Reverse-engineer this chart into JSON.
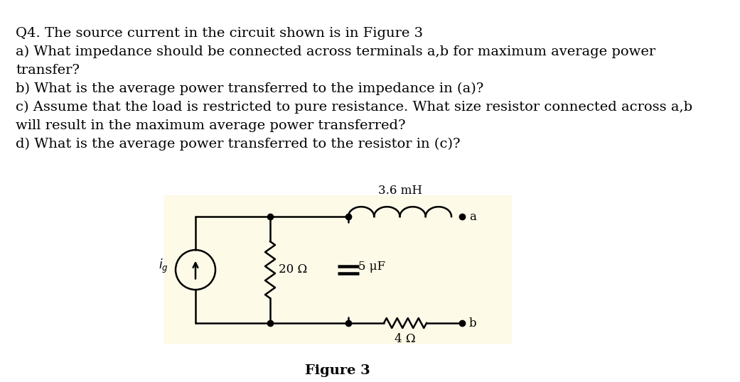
{
  "text_lines": [
    "Q4. The source current in the circuit shown is in Figure 3",
    "a) What impedance should be connected across terminals a,b for maximum average power",
    "transfer?",
    "b) What is the average power transferred to the impedance in (a)?",
    "c) Assume that the load is restricted to pure resistance. What size resistor connected across a,b",
    "will result in the maximum average power transferred?",
    "d) What is the average power transferred to the resistor in (c)?"
  ],
  "bg_color": "#ffffff",
  "circuit_bg": "#fefae8",
  "figure_label": "Figure 3",
  "inductor_label": "3.6 mH",
  "resistor20_label": "20 Ω",
  "capacitor_label": "5 μF",
  "resistor4_label": "4 Ω",
  "terminal_a": "a",
  "terminal_b": "b",
  "source_label": "i_g",
  "text_fontsize": 14,
  "circuit_fontsize": 12
}
